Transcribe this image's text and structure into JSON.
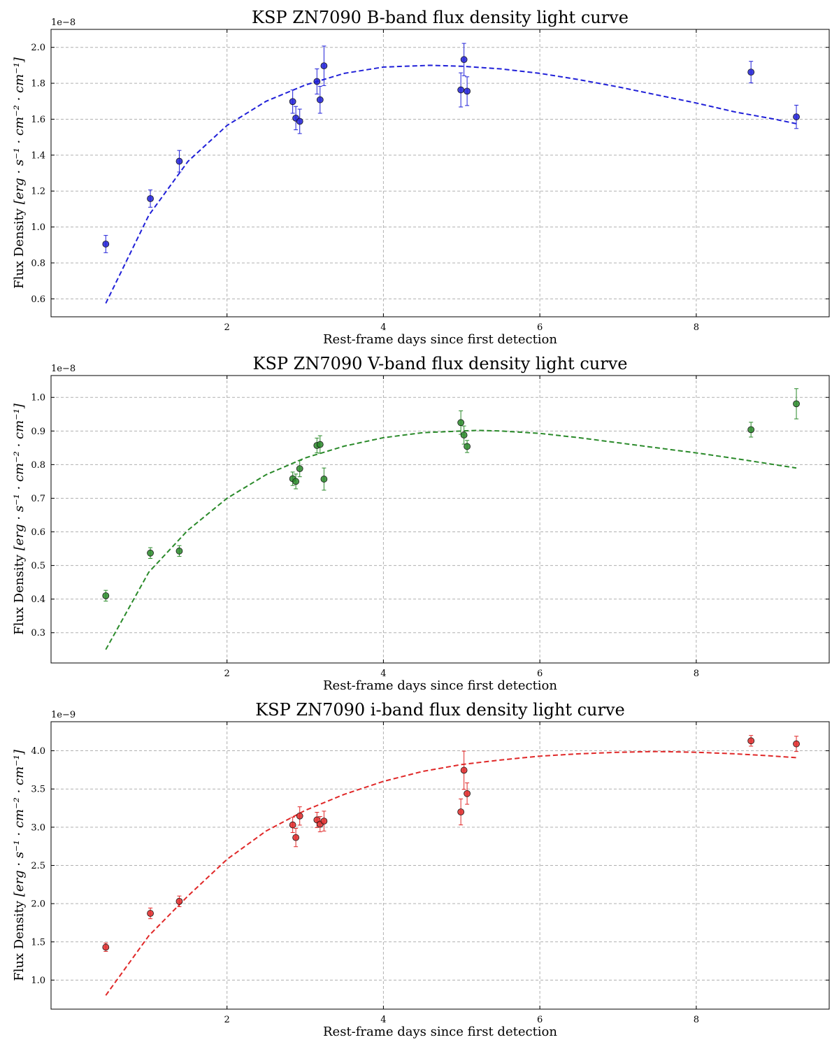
{
  "chart_data": [
    {
      "type": "scatter",
      "title": "KSP ZN7090 B-band flux density light curve",
      "xlabel": "Rest-frame days since first detection",
      "ylabel": "Flux Density",
      "ylabel_units": "[erg · s⁻¹ · cm⁻² · cm⁻¹]",
      "offset_text": "1e−8",
      "y_scale": 1e-08,
      "xlim": [
        -0.25,
        9.7
      ],
      "ylim": [
        0.5,
        2.1
      ],
      "xticks": [
        2,
        4,
        6,
        8
      ],
      "yticks": [
        0.6,
        0.8,
        1.0,
        1.2,
        1.4,
        1.6,
        1.8,
        2.0
      ],
      "ytick_decimals": 1,
      "grid": true,
      "color": "#2020d8",
      "points": [
        {
          "x": 0.45,
          "y": 0.905,
          "err": 0.048
        },
        {
          "x": 1.02,
          "y": 1.158,
          "err": 0.048
        },
        {
          "x": 1.39,
          "y": 1.366,
          "err": 0.06
        },
        {
          "x": 2.84,
          "y": 1.698,
          "err": 0.065
        },
        {
          "x": 2.88,
          "y": 1.606,
          "err": 0.065
        },
        {
          "x": 2.93,
          "y": 1.588,
          "err": 0.068
        },
        {
          "x": 3.15,
          "y": 1.81,
          "err": 0.07
        },
        {
          "x": 3.19,
          "y": 1.708,
          "err": 0.075
        },
        {
          "x": 3.24,
          "y": 1.897,
          "err": 0.11
        },
        {
          "x": 4.99,
          "y": 1.763,
          "err": 0.095
        },
        {
          "x": 5.03,
          "y": 1.932,
          "err": 0.09
        },
        {
          "x": 5.07,
          "y": 1.756,
          "err": 0.08
        },
        {
          "x": 8.7,
          "y": 1.862,
          "err": 0.06
        },
        {
          "x": 9.28,
          "y": 1.613,
          "err": 0.065
        }
      ],
      "fit": {
        "x": [
          0.45,
          1.0,
          1.5,
          2.0,
          2.5,
          3.0,
          3.5,
          4.0,
          4.6,
          5.0,
          5.5,
          6.0,
          6.5,
          7.0,
          7.5,
          8.0,
          8.5,
          9.0,
          9.28
        ],
        "y": [
          0.575,
          1.065,
          1.365,
          1.565,
          1.7,
          1.79,
          1.855,
          1.89,
          1.9,
          1.895,
          1.88,
          1.855,
          1.82,
          1.78,
          1.735,
          1.69,
          1.64,
          1.6,
          1.575
        ]
      }
    },
    {
      "type": "scatter",
      "title": "KSP ZN7090 V-band flux density light curve",
      "xlabel": "Rest-frame days since first detection",
      "ylabel": "Flux Density",
      "ylabel_units": "[erg · s⁻¹ · cm⁻² · cm⁻¹]",
      "offset_text": "1e−8",
      "y_scale": 1e-08,
      "xlim": [
        -0.25,
        9.7
      ],
      "ylim": [
        0.21,
        1.065
      ],
      "xticks": [
        2,
        4,
        6,
        8
      ],
      "yticks": [
        0.3,
        0.4,
        0.5,
        0.6,
        0.7,
        0.8,
        0.9,
        1.0
      ],
      "ytick_decimals": 1,
      "grid": true,
      "color": "#2a8a2a",
      "points": [
        {
          "x": 0.45,
          "y": 0.41,
          "err": 0.016
        },
        {
          "x": 1.02,
          "y": 0.537,
          "err": 0.016
        },
        {
          "x": 1.39,
          "y": 0.543,
          "err": 0.016
        },
        {
          "x": 2.84,
          "y": 0.758,
          "err": 0.02
        },
        {
          "x": 2.88,
          "y": 0.75,
          "err": 0.022
        },
        {
          "x": 2.93,
          "y": 0.788,
          "err": 0.024
        },
        {
          "x": 3.15,
          "y": 0.857,
          "err": 0.022
        },
        {
          "x": 3.19,
          "y": 0.86,
          "err": 0.026
        },
        {
          "x": 3.24,
          "y": 0.757,
          "err": 0.033
        },
        {
          "x": 4.99,
          "y": 0.925,
          "err": 0.035
        },
        {
          "x": 5.03,
          "y": 0.888,
          "err": 0.027
        },
        {
          "x": 5.07,
          "y": 0.854,
          "err": 0.018
        },
        {
          "x": 8.7,
          "y": 0.904,
          "err": 0.022
        },
        {
          "x": 9.28,
          "y": 0.981,
          "err": 0.045
        }
      ],
      "fit": {
        "x": [
          0.45,
          1.0,
          1.5,
          2.0,
          2.5,
          3.0,
          3.5,
          4.0,
          4.5,
          5.0,
          5.2,
          5.5,
          6.0,
          6.5,
          7.0,
          7.5,
          8.0,
          8.5,
          9.0,
          9.28
        ],
        "y": [
          0.25,
          0.48,
          0.605,
          0.7,
          0.77,
          0.82,
          0.855,
          0.88,
          0.895,
          0.9,
          0.902,
          0.9,
          0.893,
          0.88,
          0.865,
          0.85,
          0.835,
          0.818,
          0.8,
          0.79
        ]
      }
    },
    {
      "type": "scatter",
      "title": "KSP ZN7090 i-band flux density light curve",
      "xlabel": "Rest-frame days since first detection",
      "ylabel": "Flux Density",
      "ylabel_units": "[erg · s⁻¹ · cm⁻² · cm⁻¹]",
      "offset_text": "1e−9",
      "y_scale": 1e-09,
      "xlim": [
        -0.25,
        9.7
      ],
      "ylim": [
        0.62,
        4.38
      ],
      "xticks": [
        2,
        4,
        6,
        8
      ],
      "yticks": [
        1.0,
        1.5,
        2.0,
        2.5,
        3.0,
        3.5,
        4.0
      ],
      "ytick_decimals": 1,
      "grid": true,
      "color": "#e02828",
      "points": [
        {
          "x": 0.45,
          "y": 1.43,
          "err": 0.055
        },
        {
          "x": 1.02,
          "y": 1.873,
          "err": 0.07
        },
        {
          "x": 1.39,
          "y": 2.03,
          "err": 0.07
        },
        {
          "x": 2.84,
          "y": 3.03,
          "err": 0.1
        },
        {
          "x": 2.88,
          "y": 2.865,
          "err": 0.12
        },
        {
          "x": 2.93,
          "y": 3.147,
          "err": 0.12
        },
        {
          "x": 3.15,
          "y": 3.095,
          "err": 0.1
        },
        {
          "x": 3.19,
          "y": 3.04,
          "err": 0.1
        },
        {
          "x": 3.24,
          "y": 3.08,
          "err": 0.13
        },
        {
          "x": 4.99,
          "y": 3.2,
          "err": 0.17
        },
        {
          "x": 5.03,
          "y": 3.745,
          "err": 0.25
        },
        {
          "x": 5.07,
          "y": 3.44,
          "err": 0.14
        },
        {
          "x": 8.7,
          "y": 4.13,
          "err": 0.07
        },
        {
          "x": 9.28,
          "y": 4.09,
          "err": 0.1
        }
      ],
      "fit": {
        "x": [
          0.45,
          1.0,
          1.5,
          2.0,
          2.5,
          3.0,
          3.5,
          4.0,
          4.5,
          5.0,
          5.5,
          6.0,
          6.5,
          7.0,
          7.5,
          8.0,
          8.5,
          9.0,
          9.28
        ],
        "y": [
          0.8,
          1.58,
          2.1,
          2.58,
          2.95,
          3.22,
          3.43,
          3.6,
          3.73,
          3.82,
          3.88,
          3.93,
          3.96,
          3.98,
          3.99,
          3.98,
          3.96,
          3.93,
          3.91
        ]
      }
    }
  ]
}
